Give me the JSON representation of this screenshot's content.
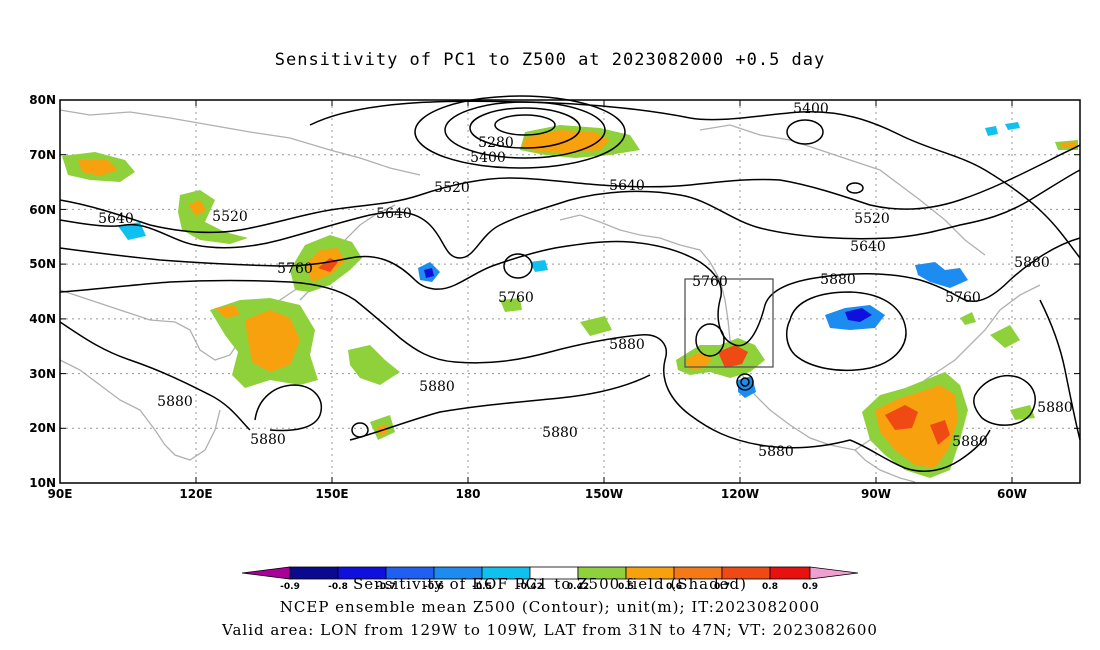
{
  "title": "Sensitivity of PC1 to Z500 at 2023082000 +0.5 day",
  "lat_labels": [
    "80N",
    "70N",
    "60N",
    "50N",
    "40N",
    "30N",
    "20N",
    "10N"
  ],
  "lon_labels": [
    "90E",
    "120E",
    "150E",
    "180",
    "150W",
    "120W",
    "90W",
    "60W"
  ],
  "contour_labels": [
    {
      "text": "5280"
    },
    {
      "text": "5400"
    },
    {
      "text": "5400"
    },
    {
      "text": "5520"
    },
    {
      "text": "5520"
    },
    {
      "text": "5520"
    },
    {
      "text": "5640"
    },
    {
      "text": "5640"
    },
    {
      "text": "5640"
    },
    {
      "text": "5640"
    },
    {
      "text": "5760"
    },
    {
      "text": "5760"
    },
    {
      "text": "5760"
    },
    {
      "text": "5760"
    },
    {
      "text": "5880"
    },
    {
      "text": "5880"
    },
    {
      "text": "5880"
    },
    {
      "text": "5880"
    },
    {
      "text": "5880"
    },
    {
      "text": "5880"
    },
    {
      "text": "5880"
    },
    {
      "text": "5880"
    },
    {
      "text": "5880"
    },
    {
      "text": "5880"
    }
  ],
  "colorbar": {
    "ticks": [
      "-0.9",
      "-0.8",
      "-0.7",
      "-0.6",
      "-0.5",
      "-0.42",
      "0.42",
      "0.5",
      "0.6",
      "0.7",
      "0.8",
      "0.9"
    ],
    "colors": [
      "#aa0099",
      "#0a0a8f",
      "#1010dd",
      "#2060f0",
      "#1d8cf0",
      "#10c0ee",
      "#ffffff",
      "#8fd13b",
      "#f7a10f",
      "#f57a17",
      "#f04a14",
      "#e8110f",
      "#ee0000",
      "#f0a0d0"
    ]
  },
  "footer": {
    "line1": "Sensitivity of EOF PC1 to Z500 field (Shaded)",
    "line2": "NCEP ensemble mean Z500 (Contour); unit(m); IT:2023082000",
    "line3": "Valid area: LON from 129W to 109W, LAT from 31N to 47N; VT: 2023082600"
  },
  "colors": {
    "contour": "#000000",
    "coast": "#b0b0b0",
    "positive_low": "#8fd13b",
    "positive_mid": "#f7a10f",
    "positive_high": "#f04a14",
    "negative": "#1d8cf0"
  }
}
